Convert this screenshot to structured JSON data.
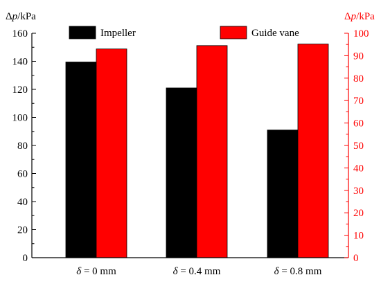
{
  "chart_data": {
    "type": "bar",
    "categories": [
      {
        "symbol": "δ",
        "rest": " = 0 mm"
      },
      {
        "symbol": "δ",
        "rest": " = 0.4 mm"
      },
      {
        "symbol": "δ",
        "rest": " = 0.8 mm"
      }
    ],
    "series": [
      {
        "name": "Impeller",
        "axis": "left",
        "color": "#000000",
        "values": [
          139.5,
          121,
          91
        ]
      },
      {
        "name": "Guide vane",
        "axis": "right",
        "color": "#ff0000",
        "values": [
          93,
          94.5,
          95.2
        ]
      }
    ],
    "y_left": {
      "label": {
        "symbol": "Δ",
        "var": "p",
        "unit": "/kPa"
      },
      "lim": [
        0,
        160
      ],
      "ticks": [
        "0",
        "20",
        "40",
        "60",
        "80",
        "100",
        "120",
        "140",
        "160"
      ],
      "color": "#000000"
    },
    "y_right": {
      "label": {
        "symbol": "Δ",
        "var": "p",
        "unit": "/kPa"
      },
      "lim": [
        0,
        100
      ],
      "ticks": [
        "0",
        "10",
        "20",
        "30",
        "40",
        "50",
        "60",
        "70",
        "80",
        "90",
        "100"
      ],
      "color": "#ff0000"
    },
    "legend": {
      "placement": "top",
      "orientation": "horizontal"
    },
    "grid": false
  }
}
